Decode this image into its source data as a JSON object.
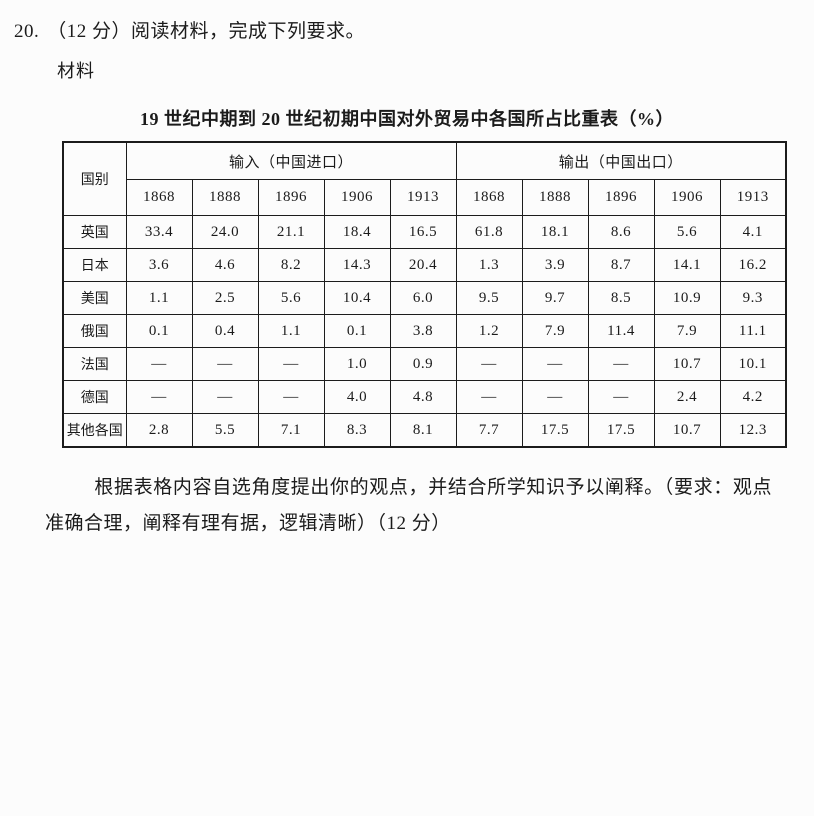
{
  "page": {
    "question_number": "20.",
    "question_intro": "（12 分）阅读材料，完成下列要求。",
    "material_label": "材料",
    "task_text": "根据表格内容自选角度提出你的观点，并结合所学知识予以阐释。（要求：观点准确合理，阐释有理有据，逻辑清晰）（12 分）"
  },
  "table": {
    "title": "19 世纪中期到 20 世纪初期中国对外贸易中各国所占比重表（%）",
    "country_header": "国别",
    "import_header": "输入（中国进口）",
    "export_header": "输出（中国出口）",
    "years": [
      "1868",
      "1888",
      "1896",
      "1906",
      "1913"
    ],
    "rows": [
      {
        "country": "英国",
        "import": [
          "33.4",
          "24.0",
          "21.1",
          "18.4",
          "16.5"
        ],
        "export": [
          "61.8",
          "18.1",
          "8.6",
          "5.6",
          "4.1"
        ]
      },
      {
        "country": "日本",
        "import": [
          "3.6",
          "4.6",
          "8.2",
          "14.3",
          "20.4"
        ],
        "export": [
          "1.3",
          "3.9",
          "8.7",
          "14.1",
          "16.2"
        ]
      },
      {
        "country": "美国",
        "import": [
          "1.1",
          "2.5",
          "5.6",
          "10.4",
          "6.0"
        ],
        "export": [
          "9.5",
          "9.7",
          "8.5",
          "10.9",
          "9.3"
        ]
      },
      {
        "country": "俄国",
        "import": [
          "0.1",
          "0.4",
          "1.1",
          "0.1",
          "3.8"
        ],
        "export": [
          "1.2",
          "7.9",
          "11.4",
          "7.9",
          "11.1"
        ]
      },
      {
        "country": "法国",
        "import": [
          "—",
          "—",
          "—",
          "1.0",
          "0.9"
        ],
        "export": [
          "—",
          "—",
          "—",
          "10.7",
          "10.1"
        ]
      },
      {
        "country": "德国",
        "import": [
          "—",
          "—",
          "—",
          "4.0",
          "4.8"
        ],
        "export": [
          "—",
          "—",
          "—",
          "2.4",
          "4.2"
        ]
      },
      {
        "country": "其他各国",
        "import": [
          "2.8",
          "5.5",
          "7.1",
          "8.3",
          "8.1"
        ],
        "export": [
          "7.7",
          "17.5",
          "17.5",
          "10.7",
          "12.3"
        ]
      }
    ]
  }
}
